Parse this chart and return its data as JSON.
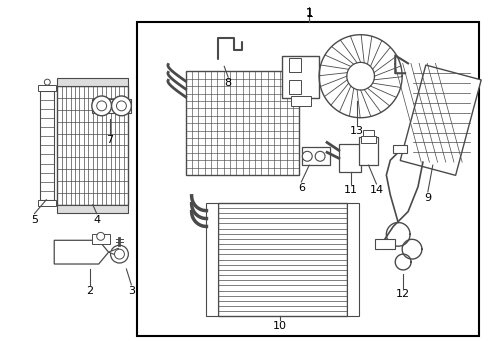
{
  "bg_color": "#ffffff",
  "line_color": "#4a4a4a",
  "fig_width": 4.89,
  "fig_height": 3.6,
  "dpi": 100
}
